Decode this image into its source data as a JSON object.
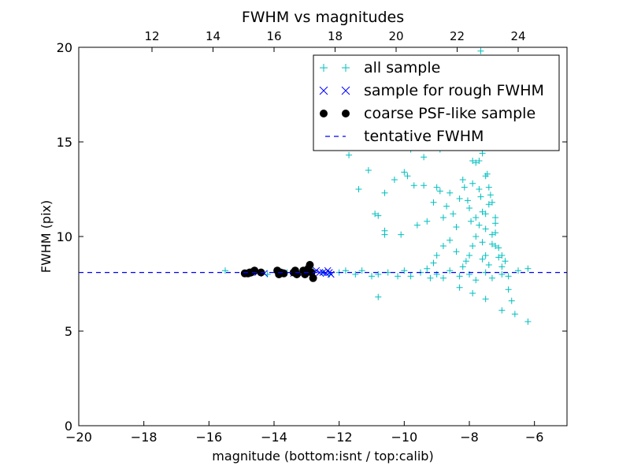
{
  "chart_data": {
    "type": "scatter",
    "title": "FWHM vs magnitudes",
    "xlabel": "magnitude (bottom:isnt / top:calib)",
    "ylabel": "FWHM (pix)",
    "xlim": [
      -20,
      -5
    ],
    "ylim": [
      0,
      20
    ],
    "x_ticks": [
      -20,
      -18,
      -16,
      -14,
      -12,
      -10,
      -8,
      -6
    ],
    "x_tick_labels": [
      "−20",
      "−18",
      "−16",
      "−14",
      "−12",
      "−10",
      "−8",
      "−6"
    ],
    "y_ticks": [
      0,
      5,
      10,
      15,
      20
    ],
    "y_tick_labels": [
      "0",
      "5",
      "10",
      "15",
      "20"
    ],
    "top_axis": {
      "xlim": [
        9.6,
        25.6
      ],
      "ticks": [
        12,
        14,
        16,
        18,
        20,
        22,
        24
      ],
      "tick_labels": [
        "12",
        "14",
        "16",
        "18",
        "20",
        "22",
        "24"
      ]
    },
    "legend_position": "top-right",
    "grid": false,
    "series": [
      {
        "name": "all sample",
        "marker": "+",
        "color": "#00BFBF",
        "points": [
          [
            -15.5,
            8.2
          ],
          [
            -14.9,
            8.1
          ],
          [
            -14.7,
            8.1
          ],
          [
            -14.4,
            8.1
          ],
          [
            -14.2,
            8.0
          ],
          [
            -13.9,
            8.2
          ],
          [
            -13.6,
            8.1
          ],
          [
            -13.3,
            8.2
          ],
          [
            -13.0,
            8.1
          ],
          [
            -12.8,
            8.2
          ],
          [
            -12.5,
            8.1
          ],
          [
            -12.3,
            8.0
          ],
          [
            -12.0,
            8.1
          ],
          [
            -11.8,
            8.2
          ],
          [
            -11.5,
            8.0
          ],
          [
            -11.3,
            8.2
          ],
          [
            -11.0,
            7.9
          ],
          [
            -10.8,
            8.0
          ],
          [
            -10.5,
            8.1
          ],
          [
            -10.2,
            7.9
          ],
          [
            -10.0,
            8.2
          ],
          [
            -9.8,
            7.9
          ],
          [
            -9.5,
            8.1
          ],
          [
            -9.2,
            7.8
          ],
          [
            -9.0,
            8.0
          ],
          [
            -8.8,
            7.8
          ],
          [
            -8.6,
            8.2
          ],
          [
            -8.3,
            7.9
          ],
          [
            -8.0,
            8.0
          ],
          [
            -7.8,
            7.7
          ],
          [
            -7.5,
            8.1
          ],
          [
            -7.3,
            7.8
          ],
          [
            -7.0,
            8.0
          ],
          [
            -6.8,
            7.9
          ],
          [
            -6.5,
            8.2
          ],
          [
            -6.2,
            8.3
          ],
          [
            -6.8,
            7.2
          ],
          [
            -6.7,
            6.6
          ],
          [
            -6.6,
            5.9
          ],
          [
            -6.2,
            5.5
          ],
          [
            -7.0,
            6.1
          ],
          [
            -7.5,
            6.7
          ],
          [
            -7.9,
            7.0
          ],
          [
            -8.3,
            7.3
          ],
          [
            -10.8,
            6.8
          ],
          [
            -11.7,
            14.3
          ],
          [
            -11.4,
            12.5
          ],
          [
            -11.1,
            13.5
          ],
          [
            -10.9,
            11.2
          ],
          [
            -10.8,
            11.1
          ],
          [
            -10.6,
            12.3
          ],
          [
            -10.6,
            10.3
          ],
          [
            -10.6,
            10.1
          ],
          [
            -10.3,
            13.0
          ],
          [
            -10.1,
            10.1
          ],
          [
            -10.0,
            13.4
          ],
          [
            -9.9,
            13.2
          ],
          [
            -9.7,
            12.7
          ],
          [
            -9.6,
            10.6
          ],
          [
            -9.4,
            12.7
          ],
          [
            -9.3,
            10.8
          ],
          [
            -9.1,
            11.8
          ],
          [
            -9.0,
            12.6
          ],
          [
            -8.9,
            12.4
          ],
          [
            -8.8,
            11.0
          ],
          [
            -8.7,
            11.6
          ],
          [
            -8.6,
            12.3
          ],
          [
            -8.5,
            11.2
          ],
          [
            -8.4,
            10.5
          ],
          [
            -8.3,
            12.0
          ],
          [
            -8.2,
            13.0
          ],
          [
            -8.0,
            11.5
          ],
          [
            -7.9,
            12.8
          ],
          [
            -7.8,
            13.9
          ],
          [
            -7.7,
            12.5
          ],
          [
            -7.6,
            11.3
          ],
          [
            -7.5,
            10.4
          ],
          [
            -7.4,
            11.7
          ],
          [
            -7.3,
            9.6
          ],
          [
            -7.2,
            10.2
          ],
          [
            -7.1,
            9.4
          ],
          [
            -7.0,
            9.0
          ],
          [
            -6.9,
            8.7
          ],
          [
            -7.7,
            14.0
          ],
          [
            -7.6,
            14.4
          ],
          [
            -7.8,
            15.1
          ],
          [
            -7.75,
            16.4
          ],
          [
            -7.7,
            17.5
          ],
          [
            -7.7,
            19.3
          ],
          [
            -7.65,
            19.8
          ],
          [
            -7.8,
            18.0
          ],
          [
            -7.9,
            19.0
          ],
          [
            -8.3,
            17.6
          ],
          [
            -8.6,
            15.3
          ],
          [
            -9.2,
            17.2
          ],
          [
            -9.5,
            16.5
          ],
          [
            -10.2,
            16.8
          ],
          [
            -10.8,
            15.1
          ],
          [
            -11.0,
            19.4
          ],
          [
            -11.5,
            17.0
          ],
          [
            -12.0,
            18.4
          ],
          [
            -9.8,
            14.6
          ],
          [
            -9.4,
            14.2
          ],
          [
            -8.9,
            14.6
          ],
          [
            -8.1,
            15.0
          ],
          [
            -8.0,
            14.8
          ],
          [
            -7.9,
            14.0
          ],
          [
            -7.5,
            13.2
          ],
          [
            -7.4,
            12.6
          ],
          [
            -7.3,
            11.8
          ],
          [
            -7.2,
            11.0
          ],
          [
            -7.2,
            9.5
          ],
          [
            -7.1,
            8.9
          ],
          [
            -7.0,
            8.4
          ],
          [
            -7.8,
            10.0
          ],
          [
            -7.9,
            9.5
          ],
          [
            -8.0,
            9.0
          ],
          [
            -8.1,
            8.7
          ],
          [
            -8.2,
            8.4
          ],
          [
            -8.4,
            9.2
          ],
          [
            -8.6,
            9.8
          ],
          [
            -8.8,
            9.5
          ],
          [
            -9.0,
            9.0
          ],
          [
            -9.1,
            8.6
          ],
          [
            -9.3,
            8.3
          ],
          [
            -7.6,
            8.8
          ],
          [
            -7.5,
            9.0
          ],
          [
            -7.4,
            8.5
          ],
          [
            -7.6,
            9.7
          ],
          [
            -7.7,
            10.6
          ],
          [
            -7.5,
            11.2
          ],
          [
            -7.3,
            10.1
          ],
          [
            -7.2,
            10.7
          ],
          [
            -7.35,
            12.2
          ],
          [
            -7.45,
            13.3
          ],
          [
            -7.65,
            12.1
          ],
          [
            -7.8,
            11.0
          ],
          [
            -7.95,
            10.8
          ],
          [
            -8.05,
            11.9
          ],
          [
            -8.15,
            12.6
          ]
        ]
      },
      {
        "name": "sample for rough FWHM",
        "marker": "x",
        "color": "#0000FF",
        "points": [
          [
            -14.8,
            8.05
          ],
          [
            -14.5,
            8.1
          ],
          [
            -14.3,
            8.05
          ],
          [
            -13.8,
            8.1
          ],
          [
            -13.4,
            8.05
          ],
          [
            -13.1,
            8.1
          ],
          [
            -12.8,
            8.05
          ],
          [
            -12.7,
            8.2
          ],
          [
            -12.6,
            8.1
          ],
          [
            -12.5,
            8.1
          ],
          [
            -12.4,
            8.05
          ],
          [
            -12.35,
            8.2
          ],
          [
            -12.3,
            8.1
          ],
          [
            -12.25,
            8.0
          ]
        ]
      },
      {
        "name": "coarse PSF-like sample",
        "marker": "o",
        "color": "#000000",
        "points": [
          [
            -14.9,
            8.05
          ],
          [
            -14.8,
            8.05
          ],
          [
            -14.75,
            8.1
          ],
          [
            -14.7,
            8.1
          ],
          [
            -14.6,
            8.2
          ],
          [
            -14.4,
            8.1
          ],
          [
            -13.9,
            8.2
          ],
          [
            -13.85,
            8.0
          ],
          [
            -13.8,
            8.1
          ],
          [
            -13.7,
            8.05
          ],
          [
            -13.4,
            8.1
          ],
          [
            -13.35,
            8.2
          ],
          [
            -13.3,
            8.0
          ],
          [
            -13.1,
            8.2
          ],
          [
            -13.05,
            8.0
          ],
          [
            -13.0,
            8.1
          ],
          [
            -12.95,
            8.3
          ],
          [
            -12.9,
            8.5
          ],
          [
            -12.85,
            8.1
          ],
          [
            -12.8,
            7.8
          ]
        ]
      },
      {
        "name": "tentative FWHM",
        "marker": "--",
        "color": "#0000FF",
        "y": 8.1
      }
    ]
  }
}
